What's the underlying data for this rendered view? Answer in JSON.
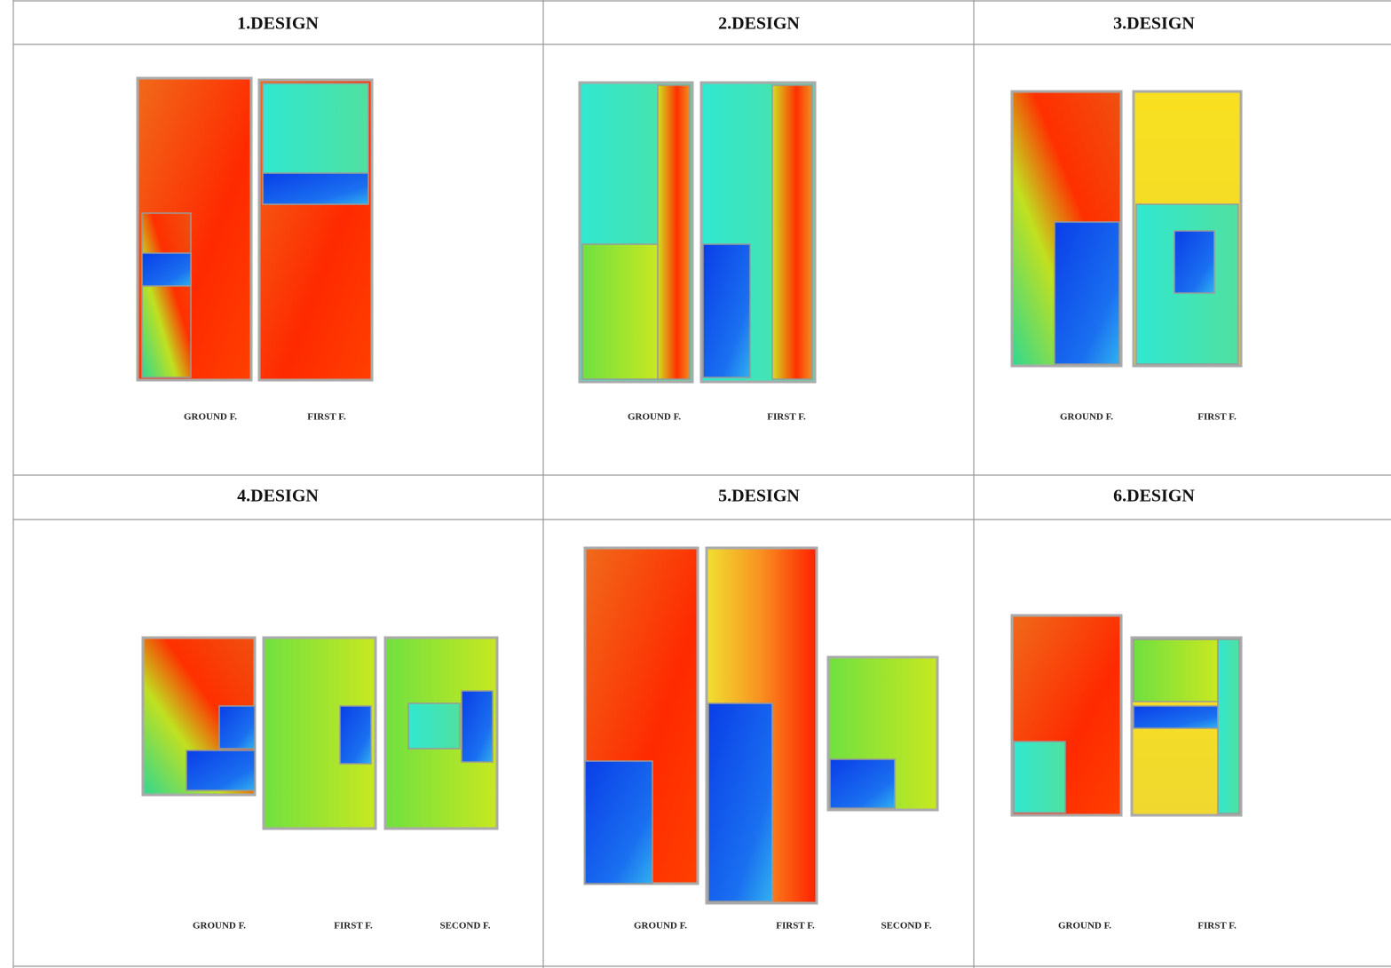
{
  "designs": [
    {
      "title": "1.DESIGN",
      "floors": [
        "GROUND F.",
        "FIRST F."
      ]
    },
    {
      "title": "2.DESIGN",
      "floors": [
        "GROUND F.",
        "FIRST F."
      ]
    },
    {
      "title": "3.DESIGN",
      "floors": [
        "GROUND F.",
        "FIRST F."
      ]
    },
    {
      "title": "4.DESIGN",
      "floors": [
        "GROUND F.",
        "FIRST F.",
        "SECOND F."
      ]
    },
    {
      "title": "5.DESIGN",
      "floors": [
        "GROUND F.",
        "FIRST F.",
        "SECOND F."
      ]
    },
    {
      "title": "6.DESIGN",
      "floors": [
        "GROUND F.",
        "FIRST F."
      ]
    }
  ]
}
